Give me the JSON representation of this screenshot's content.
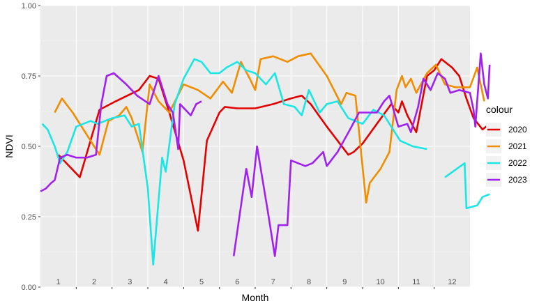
{
  "chart_data": {
    "type": "line",
    "xlabel": "Month",
    "ylabel": "NDVI",
    "xlim": [
      0,
      12
    ],
    "ylim": [
      0,
      1
    ],
    "y_ticks": [
      "0.00",
      "0.25",
      "0.50",
      "0.75",
      "1.00"
    ],
    "month_labels": [
      "1",
      "2",
      "3",
      "4",
      "5",
      "6",
      "7",
      "8",
      "9",
      "10",
      "11",
      "12"
    ],
    "grid": true,
    "legend": {
      "title": "colour",
      "position": "right"
    },
    "series": [
      {
        "name": "2020",
        "color": "#e50000",
        "points": [
          [
            [
              0.5,
              0.47
            ],
            [
              1.1,
              0.39
            ],
            [
              1.65,
              0.63
            ],
            [
              2.1,
              0.66
            ],
            [
              2.75,
              0.7
            ],
            [
              3.05,
              0.75
            ],
            [
              3.3,
              0.74
            ],
            [
              3.6,
              0.62
            ],
            [
              4.0,
              0.45
            ],
            [
              4.4,
              0.2
            ],
            [
              4.65,
              0.52
            ],
            [
              5.0,
              0.62
            ],
            [
              5.15,
              0.64
            ],
            [
              5.5,
              0.635
            ],
            [
              6.0,
              0.635
            ],
            [
              6.5,
              0.65
            ],
            [
              7.0,
              0.67
            ],
            [
              7.3,
              0.68
            ],
            [
              7.55,
              0.65
            ],
            [
              8.0,
              0.57
            ],
            [
              8.6,
              0.47
            ],
            [
              8.75,
              0.48
            ],
            [
              9.0,
              0.51
            ],
            [
              9.4,
              0.58
            ],
            [
              9.8,
              0.65
            ],
            [
              10.0,
              0.62
            ],
            [
              10.1,
              0.66
            ],
            [
              10.25,
              0.61
            ],
            [
              10.5,
              0.55
            ],
            [
              10.8,
              0.75
            ],
            [
              11.0,
              0.77
            ],
            [
              11.2,
              0.81
            ],
            [
              11.5,
              0.78
            ],
            [
              11.7,
              0.75
            ],
            [
              11.9,
              0.67
            ],
            [
              12.1,
              0.6
            ],
            [
              12.35,
              0.56
            ],
            [
              12.55,
              0.58
            ]
          ]
        ]
      },
      {
        "name": "2021",
        "color": "#f28c00",
        "points": [
          [
            [
              0.4,
              0.62
            ],
            [
              0.6,
              0.67
            ],
            [
              0.9,
              0.62
            ],
            [
              1.2,
              0.56
            ],
            [
              1.5,
              0.5
            ],
            [
              1.65,
              0.47
            ],
            [
              1.9,
              0.59
            ],
            [
              2.2,
              0.61
            ],
            [
              2.4,
              0.64
            ],
            [
              2.55,
              0.6
            ],
            [
              2.75,
              0.52
            ],
            [
              2.85,
              0.48
            ],
            [
              3.05,
              0.72
            ],
            [
              3.3,
              0.66
            ],
            [
              3.6,
              0.62
            ],
            [
              4.0,
              0.72
            ],
            [
              4.4,
              0.7
            ],
            [
              4.75,
              0.67
            ],
            [
              5.1,
              0.73
            ],
            [
              5.35,
              0.69
            ],
            [
              5.6,
              0.8
            ],
            [
              5.85,
              0.74
            ],
            [
              6.0,
              0.7
            ],
            [
              6.15,
              0.81
            ],
            [
              6.5,
              0.82
            ],
            [
              6.9,
              0.8
            ],
            [
              7.2,
              0.82
            ],
            [
              7.55,
              0.83
            ],
            [
              8.0,
              0.75
            ],
            [
              8.4,
              0.65
            ],
            [
              8.55,
              0.69
            ],
            [
              8.8,
              0.68
            ],
            [
              9.1,
              0.3
            ],
            [
              9.2,
              0.37
            ],
            [
              9.5,
              0.42
            ],
            [
              9.75,
              0.48
            ],
            [
              9.95,
              0.7
            ],
            [
              10.1,
              0.75
            ],
            [
              10.2,
              0.71
            ],
            [
              10.35,
              0.74
            ],
            [
              10.5,
              0.69
            ],
            [
              10.8,
              0.76
            ],
            [
              11.05,
              0.79
            ],
            [
              11.3,
              0.72
            ],
            [
              11.6,
              0.71
            ],
            [
              12.0,
              0.71
            ],
            [
              12.2,
              0.78
            ],
            [
              12.4,
              0.66
            ]
          ]
        ]
      },
      {
        "name": "2022",
        "color": "#1ae6e6",
        "points": [
          [
            [
              0.05,
              0.58
            ],
            [
              0.2,
              0.56
            ],
            [
              0.4,
              0.5
            ],
            [
              0.55,
              0.44
            ],
            [
              0.75,
              0.48
            ],
            [
              1.0,
              0.57
            ],
            [
              1.4,
              0.59
            ],
            [
              1.6,
              0.58
            ],
            [
              2.0,
              0.6
            ],
            [
              2.35,
              0.61
            ],
            [
              2.55,
              0.57
            ],
            [
              2.75,
              0.58
            ],
            [
              3.0,
              0.35
            ],
            [
              3.15,
              0.08
            ],
            [
              3.4,
              0.46
            ],
            [
              3.5,
              0.41
            ],
            [
              3.75,
              0.65
            ],
            [
              4.0,
              0.74
            ],
            [
              4.3,
              0.81
            ],
            [
              4.5,
              0.8
            ],
            [
              4.75,
              0.76
            ],
            [
              5.0,
              0.76
            ],
            [
              5.2,
              0.78
            ],
            [
              5.5,
              0.8
            ],
            [
              5.75,
              0.77
            ],
            [
              6.0,
              0.76
            ],
            [
              6.3,
              0.72
            ],
            [
              6.55,
              0.76
            ],
            [
              6.8,
              0.65
            ],
            [
              7.1,
              0.64
            ],
            [
              7.3,
              0.61
            ],
            [
              7.5,
              0.7
            ],
            [
              7.8,
              0.62
            ],
            [
              8.0,
              0.65
            ],
            [
              8.3,
              0.66
            ],
            [
              8.6,
              0.6
            ],
            [
              9.0,
              0.58
            ],
            [
              9.3,
              0.63
            ],
            [
              9.6,
              0.61
            ],
            [
              9.8,
              0.57
            ],
            [
              10.05,
              0.52
            ],
            [
              10.4,
              0.5
            ],
            [
              10.8,
              0.49
            ]
          ],
          [
            [
              11.3,
              0.39
            ],
            [
              11.85,
              0.44
            ],
            [
              11.9,
              0.28
            ],
            [
              12.2,
              0.29
            ],
            [
              12.35,
              0.32
            ],
            [
              12.55,
              0.33
            ]
          ]
        ]
      },
      {
        "name": "2023",
        "color": "#a020f0",
        "points": [
          [
            [
              0.0,
              0.34
            ],
            [
              0.15,
              0.35
            ],
            [
              0.3,
              0.37
            ],
            [
              0.4,
              0.38
            ],
            [
              0.55,
              0.46
            ],
            [
              0.75,
              0.47
            ],
            [
              1.0,
              0.46
            ],
            [
              1.3,
              0.46
            ],
            [
              1.55,
              0.47
            ],
            [
              1.7,
              0.65
            ],
            [
              1.85,
              0.75
            ],
            [
              2.05,
              0.76
            ],
            [
              2.4,
              0.72
            ],
            [
              2.7,
              0.68
            ],
            [
              3.05,
              0.65
            ],
            [
              3.3,
              0.75
            ],
            [
              3.55,
              0.65
            ],
            [
              3.7,
              0.62
            ],
            [
              3.85,
              0.49
            ],
            [
              3.9,
              0.65
            ],
            [
              4.2,
              0.61
            ],
            [
              4.35,
              0.65
            ],
            [
              4.5,
              0.66
            ]
          ],
          [
            [
              5.4,
              0.11
            ],
            [
              5.75,
              0.42
            ],
            [
              5.9,
              0.32
            ],
            [
              6.05,
              0.5
            ],
            [
              6.35,
              0.27
            ],
            [
              6.55,
              0.11
            ],
            [
              6.65,
              0.22
            ],
            [
              6.9,
              0.22
            ],
            [
              7.0,
              0.45
            ],
            [
              7.4,
              0.43
            ],
            [
              7.6,
              0.44
            ],
            [
              7.9,
              0.48
            ],
            [
              8.0,
              0.43
            ],
            [
              8.3,
              0.48
            ],
            [
              8.65,
              0.56
            ],
            [
              8.9,
              0.62
            ],
            [
              9.2,
              0.62
            ],
            [
              9.4,
              0.62
            ],
            [
              9.6,
              0.66
            ],
            [
              9.75,
              0.68
            ],
            [
              10.0,
              0.57
            ],
            [
              10.25,
              0.58
            ],
            [
              10.35,
              0.55
            ],
            [
              10.55,
              0.64
            ],
            [
              10.7,
              0.74
            ],
            [
              10.9,
              0.7
            ],
            [
              11.1,
              0.76
            ],
            [
              11.3,
              0.74
            ],
            [
              11.45,
              0.69
            ],
            [
              11.7,
              0.7
            ],
            [
              12.0,
              0.69
            ],
            [
              12.1,
              0.63
            ],
            [
              12.15,
              0.57
            ],
            [
              12.3,
              0.83
            ],
            [
              12.4,
              0.72
            ],
            [
              12.5,
              0.67
            ],
            [
              12.55,
              0.79
            ]
          ]
        ]
      }
    ]
  }
}
